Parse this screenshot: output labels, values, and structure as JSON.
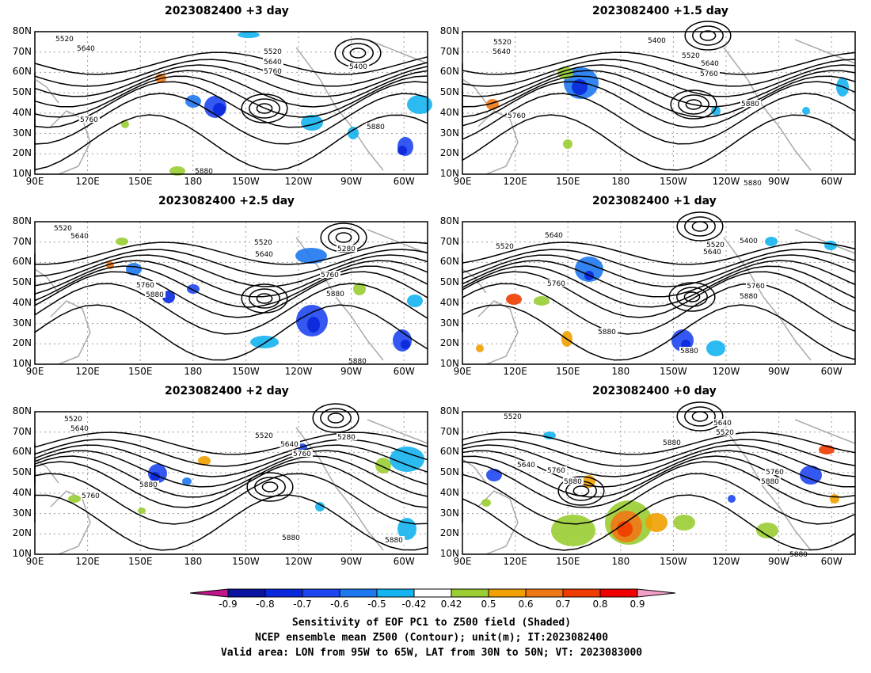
{
  "panels": [
    {
      "title": "2023082400 +3 day"
    },
    {
      "title": "2023082400 +1.5 day"
    },
    {
      "title": "2023082400 +2.5 day"
    },
    {
      "title": "2023082400 +1 day"
    },
    {
      "title": "2023082400 +2 day"
    },
    {
      "title": "2023082400 +0 day"
    }
  ],
  "lat_labels": [
    "80N",
    "70N",
    "60N",
    "50N",
    "40N",
    "30N",
    "20N",
    "10N"
  ],
  "lon_labels": [
    "90E",
    "120E",
    "150E",
    "180",
    "150W",
    "120W",
    "90W",
    "60W"
  ],
  "contour_labels": {
    "p0": [
      "5520",
      "5640",
      "5520",
      "5640",
      "5760",
      "5400",
      "5760",
      "5880",
      "5880"
    ],
    "p1": [
      "5520",
      "5640",
      "5400",
      "5520",
      "5640",
      "5760",
      "5880",
      "5760",
      "5880"
    ],
    "p2": [
      "5520",
      "5640",
      "5520",
      "5640",
      "5280",
      "5760",
      "5880",
      "5760",
      "5880",
      "5880"
    ],
    "p3": [
      "5520",
      "5640",
      "5520",
      "5400",
      "5640",
      "5760",
      "5760",
      "5880",
      "5880",
      "5880"
    ],
    "p4": [
      "5520",
      "5640",
      "5520",
      "5640",
      "5280",
      "5760",
      "5880",
      "5760",
      "5880",
      "5880"
    ],
    "p5": [
      "5520",
      "5520",
      "5640",
      "5640",
      "5760",
      "5880",
      "5760",
      "5880",
      "5880",
      "5880"
    ]
  },
  "colorbar": {
    "ticks": [
      "-0.9",
      "-0.8",
      "-0.7",
      "-0.6",
      "-0.5",
      "-0.42",
      "0.42",
      "0.5",
      "0.6",
      "0.7",
      "0.8",
      "0.9"
    ],
    "colors": [
      "#c0148c",
      "#0a14a0",
      "#0a28dc",
      "#1e46f0",
      "#1e78f0",
      "#14b4f0",
      "#ffffff",
      "#9acd32",
      "#f0a000",
      "#f07814",
      "#f03c00",
      "#f00000",
      "#f0a0c8"
    ]
  },
  "captions": {
    "line1": "Sensitivity of EOF PC1 to Z500 field (Shaded)",
    "line2": "NCEP ensemble mean Z500 (Contour); unit(m); IT:2023082400",
    "line3": "Valid area: LON from 95W to 65W, LAT from 30N to 50N; VT: 2023083000"
  }
}
